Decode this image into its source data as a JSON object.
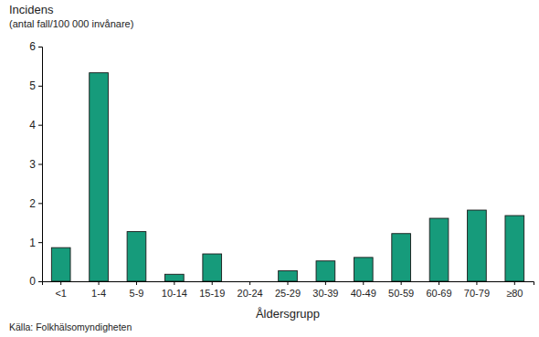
{
  "chart_data": {
    "type": "bar",
    "y_label": [
      "Incidens",
      "(antal fall/100 000 invånare)"
    ],
    "x_label": "Åldersgrupp",
    "source": "Källa: Folkhälsomyndigheten",
    "categories": [
      "<1",
      "1-4",
      "5-9",
      "10-14",
      "15-19",
      "20-24",
      "25-29",
      "30-39",
      "40-49",
      "50-59",
      "60-69",
      "70-79",
      "≥80"
    ],
    "values": [
      0.86,
      5.33,
      1.27,
      0.18,
      0.7,
      0,
      0.27,
      0.52,
      0.61,
      1.22,
      1.61,
      1.82,
      1.68
    ],
    "color": "#169b7b",
    "ylim": [
      0,
      6
    ],
    "yticks": [
      0,
      1,
      2,
      3,
      4,
      5,
      6
    ],
    "grid": false
  }
}
